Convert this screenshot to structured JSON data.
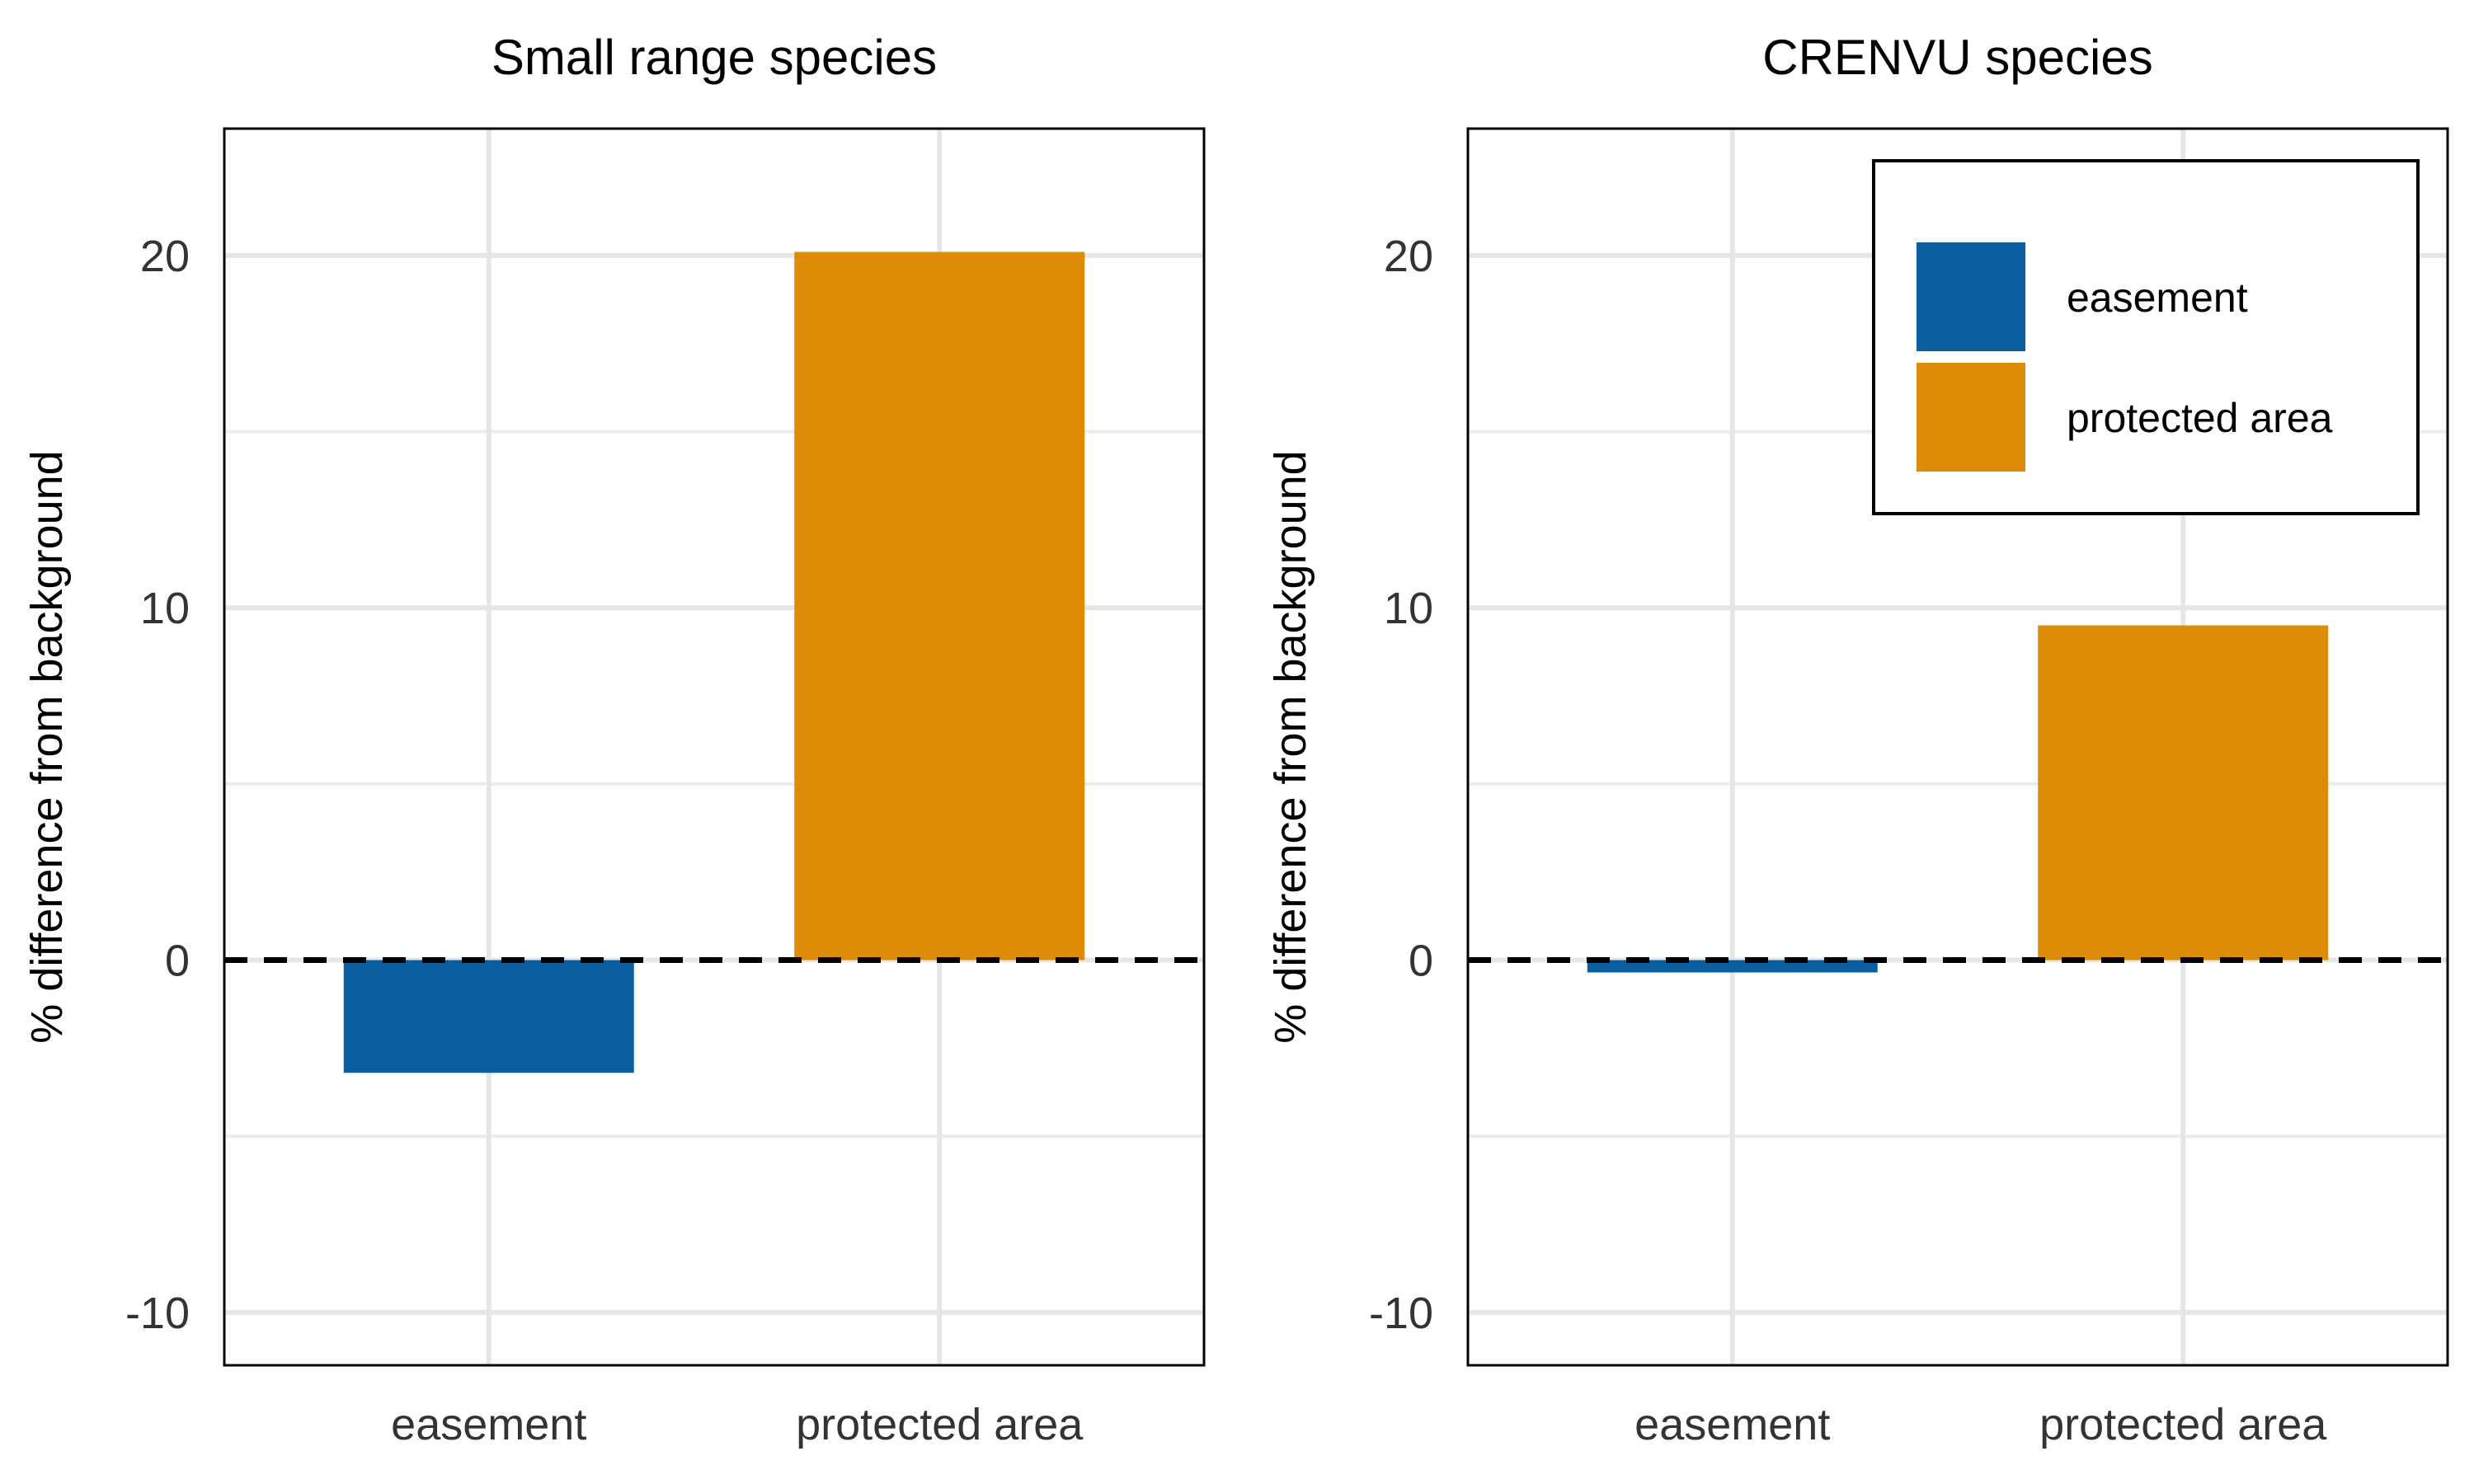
{
  "chart_data": [
    {
      "type": "bar",
      "title": "Small range species",
      "ylabel": "% difference from background",
      "categories": [
        "easement",
        "protected area"
      ],
      "values": [
        -3.2,
        20.1
      ],
      "colors": [
        "#0a5fa3",
        "#dd8c08"
      ],
      "ylim": [
        -11.5,
        23.6
      ],
      "yticks": [
        -10,
        0,
        10,
        20
      ],
      "ytick_labels": [
        "-10",
        "0",
        "10",
        "20"
      ],
      "reference_line": 0,
      "grid": true
    },
    {
      "type": "bar",
      "title": "CRENVU species",
      "ylabel": "% difference from background",
      "categories": [
        "easement",
        "protected area"
      ],
      "values": [
        -0.35,
        9.5
      ],
      "colors": [
        "#0a5fa3",
        "#dd8c08"
      ],
      "ylim": [
        -11.5,
        23.6
      ],
      "yticks": [
        -10,
        0,
        10,
        20
      ],
      "ytick_labels": [
        "-10",
        "0",
        "10",
        "20"
      ],
      "reference_line": 0,
      "grid": true
    }
  ],
  "legend": {
    "placement": "top-right",
    "entries": [
      {
        "label": "easement",
        "color": "#0a5fa3"
      },
      {
        "label": "protected area",
        "color": "#dd8c08"
      }
    ]
  }
}
